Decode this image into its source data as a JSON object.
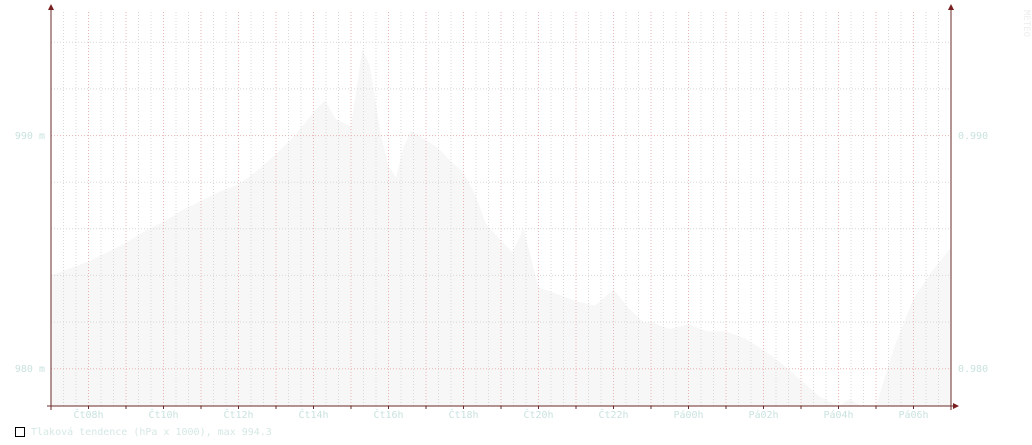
{
  "chart_data": {
    "type": "area",
    "title": "",
    "xlabel": "",
    "ylabel": "",
    "x_ticks": [
      "Čt08h",
      "Čt10h",
      "Čt12h",
      "Čt14h",
      "Čt16h",
      "Čt18h",
      "Čt20h",
      "Čt22h",
      "Pá00h",
      "Pá02h",
      "Pá04h",
      "Pá06h"
    ],
    "x_range_hours": [
      7.0,
      31.0
    ],
    "ylim": [
      978.4,
      995.3
    ],
    "y_ticks_left": [
      "980 m",
      "990 m"
    ],
    "y_ticks_right": [
      "0.980",
      "0.990"
    ],
    "y_tick_values": [
      980,
      990
    ],
    "grid": true,
    "legend_position": "bottom-left",
    "series": [
      {
        "name": "Tlaková tendence (hPa x 1000), max 994.3",
        "color": "#f7f7f7",
        "x": [
          7.0,
          7.5,
          8.0,
          8.5,
          9.0,
          9.5,
          10.0,
          10.5,
          11.0,
          11.5,
          12.0,
          12.5,
          13.0,
          13.5,
          14.0,
          14.3,
          14.6,
          15.0,
          15.3,
          15.5,
          15.8,
          16.0,
          16.2,
          16.4,
          16.6,
          17.0,
          17.3,
          17.6,
          18.0,
          18.3,
          18.6,
          19.0,
          19.3,
          19.6,
          20.0,
          20.5,
          21.0,
          21.5,
          22.0,
          22.4,
          22.8,
          23.0,
          23.5,
          24.0,
          24.5,
          25.0,
          25.5,
          26.0,
          26.5,
          27.0,
          27.5,
          28.0,
          28.3,
          28.6,
          29.0,
          29.5,
          30.0,
          30.5,
          31.0
        ],
        "values": [
          984.0,
          984.3,
          984.6,
          985.0,
          985.4,
          985.9,
          986.3,
          986.8,
          987.2,
          987.6,
          987.9,
          988.5,
          989.2,
          990.0,
          991.0,
          991.5,
          990.7,
          990.4,
          993.7,
          993.0,
          990.0,
          988.7,
          988.2,
          989.5,
          990.2,
          989.8,
          989.5,
          989.0,
          988.4,
          987.5,
          986.2,
          985.5,
          985.0,
          986.0,
          983.5,
          983.2,
          982.9,
          982.7,
          983.4,
          982.6,
          982.0,
          982.0,
          981.7,
          981.9,
          981.6,
          981.6,
          981.3,
          980.8,
          980.2,
          979.5,
          978.8,
          978.4,
          978.7,
          978.4,
          978.4,
          981.0,
          983.0,
          984.2,
          985.2
        ]
      }
    ]
  }
}
